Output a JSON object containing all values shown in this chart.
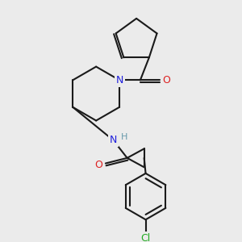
{
  "bg_color": "#ebebeb",
  "bond_color": "#1a1a1a",
  "N_color": "#2020dd",
  "O_color": "#dd2020",
  "Cl_color": "#22aa22",
  "H_color": "#6699aa",
  "line_width": 1.5,
  "font_size_atom": 9,
  "fig_size": [
    3.0,
    3.0
  ],
  "dpi": 100,
  "xlim": [
    0,
    300
  ],
  "ylim": [
    0,
    300
  ]
}
